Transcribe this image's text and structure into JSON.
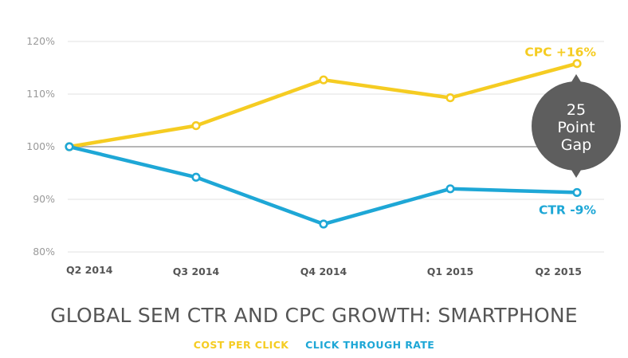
{
  "chart_data": {
    "type": "line",
    "title": "GLOBAL SEM CTR AND CPC GROWTH: SMARTPHONE",
    "categories": [
      "Q2 2014",
      "Q3 2014",
      "Q4 2014",
      "Q1 2015",
      "Q2 2015"
    ],
    "y_ticks": [
      "120%",
      "110%",
      "100%",
      "90%",
      "80%"
    ],
    "ylim": [
      80,
      120
    ],
    "grid": true,
    "series": [
      {
        "name": "COST PER CLICK",
        "values": [
          100,
          104,
          112.7,
          109.3,
          115.8
        ],
        "color": "#f5cc22",
        "end_label": "CPC +16%"
      },
      {
        "name": "CLICK THROUGH RATE",
        "values": [
          100,
          94.2,
          85.3,
          92,
          91.3
        ],
        "color": "#1ea7d6",
        "end_label": "CTR -9%"
      }
    ],
    "annotation": {
      "lines": [
        "25",
        "Point",
        "Gap"
      ],
      "color": "#5e5e5e",
      "text_color": "#ffffff"
    }
  }
}
